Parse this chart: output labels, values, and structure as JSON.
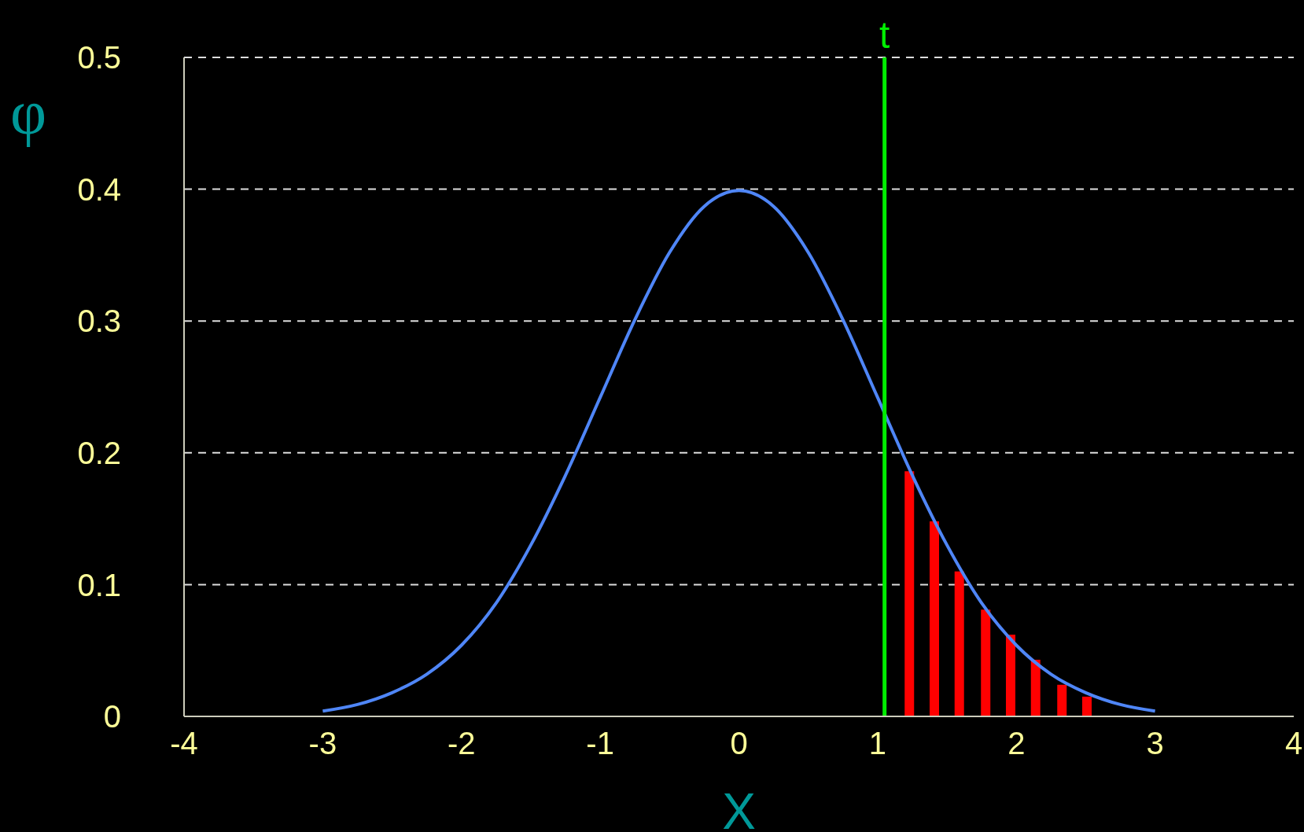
{
  "chart_data": {
    "type": "line",
    "xlabel": "X",
    "ylabel": "φ",
    "xlim": [
      -4,
      4
    ],
    "xticks": [
      -4,
      -3,
      -2,
      -1,
      0,
      1,
      2,
      3,
      4
    ],
    "ylim": [
      0,
      0.5
    ],
    "yticks": [
      0,
      0.1,
      0.2,
      0.3,
      0.4,
      0.5
    ],
    "grid": "y",
    "legend": false,
    "marker": "none",
    "line_style": "solid",
    "series": [
      {
        "color": "#4f86f7",
        "x": [
          -3,
          -2.75,
          -2.5,
          -2.25,
          -2,
          -1.75,
          -1.5,
          -1.25,
          -1,
          -0.75,
          -0.5,
          -0.25,
          0,
          0.25,
          0.5,
          0.75,
          1,
          1.25,
          1.5,
          1.75,
          2,
          2.25,
          2.5,
          2.75,
          3
        ],
        "values": [
          0.004,
          0.009,
          0.018,
          0.032,
          0.054,
          0.086,
          0.13,
          0.183,
          0.242,
          0.301,
          0.352,
          0.387,
          0.399,
          0.387,
          0.352,
          0.301,
          0.242,
          0.183,
          0.13,
          0.086,
          0.054,
          0.032,
          0.018,
          0.009,
          0.004
        ]
      },
      {
        "type": "bar",
        "color": "#ff0000",
        "x": [
          1.23,
          1.41,
          1.59,
          1.78,
          1.96,
          2.14,
          2.33,
          2.51
        ],
        "values": [
          0.186,
          0.148,
          0.11,
          0.081,
          0.062,
          0.043,
          0.024,
          0.015
        ]
      }
    ],
    "ref_lines": [
      {
        "axis": "x",
        "value": 1.05,
        "label": "t",
        "color": "#00ee00"
      }
    ]
  }
}
